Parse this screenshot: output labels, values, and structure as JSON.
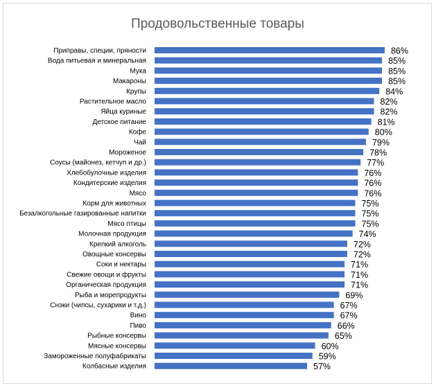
{
  "chart_data": {
    "type": "bar",
    "orientation": "horizontal",
    "title": "Продовольственные товары",
    "value_suffix": "%",
    "categories": [
      "Приправы, специи, пряности",
      "Вода питьевая и минеральная",
      "Мука",
      "Макароны",
      "Крупы",
      "Растительное масло",
      "Яйца куриные",
      "Детское питание",
      "Кофе",
      "Чай",
      "Мороженое",
      "Соусы (майонез, кетчуп и др.)",
      "Хлебобулочные изделия",
      "Кондитерские изделия",
      "Мясо",
      "Корм для животных",
      "Безалкогольные газированные напитки",
      "Мясо птицы",
      "Молочная продукция",
      "Крепкий алкоголь",
      "Овощные консервы",
      "Соки и нектары",
      "Свежие овощи и фрукты",
      "Органическая продукция",
      "Рыба и морепродукты",
      "Снэки (чипсы, сухарики и т.д.)",
      "Вино",
      "Пиво",
      "Рыбные консервы",
      "Мясные консервы",
      "Замороженные полуфабрикаты",
      "Колбасные изделия"
    ],
    "values": [
      86,
      85,
      85,
      85,
      84,
      82,
      82,
      81,
      80,
      79,
      78,
      77,
      76,
      76,
      76,
      75,
      75,
      75,
      74,
      72,
      72,
      71,
      71,
      71,
      69,
      67,
      67,
      66,
      65,
      60,
      59,
      57
    ],
    "value_labels": [
      "86%",
      "85%",
      "85%",
      "85%",
      "84%",
      "82%",
      "82%",
      "81%",
      "80%",
      "79%",
      "78%",
      "77%",
      "76%",
      "76%",
      "76%",
      "75%",
      "75%",
      "75%",
      "74%",
      "72%",
      "72%",
      "71%",
      "71%",
      "71%",
      "69%",
      "67%",
      "67%",
      "66%",
      "65%",
      "60%",
      "59%",
      "57%"
    ],
    "xlim": [
      0,
      100
    ],
    "bar_color": "#4472c4",
    "grid": false,
    "legend": false
  }
}
